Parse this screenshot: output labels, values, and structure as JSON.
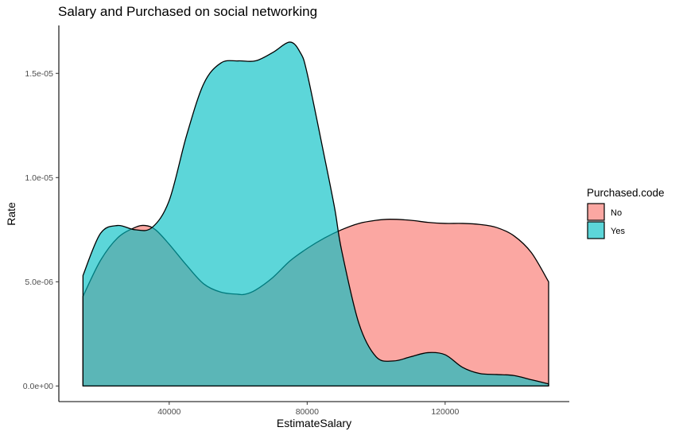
{
  "chart_data": {
    "type": "area",
    "title": "Salary and Purchased on social networking",
    "xlabel": "EstimateSalary",
    "ylabel": "Rate",
    "xlim": [
      8000,
      156000
    ],
    "ylim": [
      -7.5e-07,
      1.73e-05
    ],
    "x_ticks": [
      {
        "value": 40000,
        "label": "40000"
      },
      {
        "value": 80000,
        "label": "80000"
      },
      {
        "value": 120000,
        "label": "120000"
      }
    ],
    "y_ticks": [
      {
        "value": 0,
        "label": "0.0e+00"
      },
      {
        "value": 5e-06,
        "label": "5.0e-06"
      },
      {
        "value": 1e-05,
        "label": "1.0e-05"
      },
      {
        "value": 1.5e-05,
        "label": "1.5e-05"
      }
    ],
    "grid": false,
    "legend": {
      "title": "Purchased.code",
      "position": "right"
    },
    "series": [
      {
        "name": "No",
        "color": "#F8766D",
        "x": [
          15000,
          20000,
          25000,
          30000,
          33000,
          36000,
          40000,
          45000,
          50000,
          55000,
          60000,
          62000,
          65000,
          70000,
          75000,
          80000,
          85000,
          90000,
          95000,
          100000,
          104000,
          110000,
          115000,
          120000,
          125000,
          130000,
          135000,
          140000,
          145000,
          150000
        ],
        "y": [
          4.3e-06,
          6e-06,
          7.1e-06,
          7.6e-06,
          7.7e-06,
          7.5e-06,
          6.8e-06,
          5.8e-06,
          4.9e-06,
          4.5e-06,
          4.4e-06,
          4.4e-06,
          4.6e-06,
          5.2e-06,
          6e-06,
          6.6e-06,
          7.1e-06,
          7.5e-06,
          7.8e-06,
          7.95e-06,
          8e-06,
          7.95e-06,
          7.85e-06,
          7.8e-06,
          7.8e-06,
          7.75e-06,
          7.6e-06,
          7.2e-06,
          6.4e-06,
          5e-06
        ]
      },
      {
        "name": "Yes",
        "color": "#00BFC4",
        "x": [
          15000,
          20000,
          25000,
          30000,
          35000,
          40000,
          45000,
          50000,
          55000,
          60000,
          65000,
          70000,
          75000,
          78000,
          80000,
          85000,
          88000,
          90000,
          95000,
          100000,
          105000,
          110000,
          115000,
          120000,
          125000,
          130000,
          135000,
          140000,
          145000,
          150000
        ],
        "y": [
          5.3e-06,
          7.3e-06,
          7.7e-06,
          7.5e-06,
          7.6e-06,
          8.9e-06,
          1.2e-05,
          1.45e-05,
          1.55e-05,
          1.56e-05,
          1.56e-05,
          1.6e-05,
          1.65e-05,
          1.6e-05,
          1.5e-05,
          1.1e-05,
          8.5e-06,
          6.5e-06,
          3e-06,
          1.4e-06,
          1.2e-06,
          1.4e-06,
          1.6e-06,
          1.5e-06,
          9e-07,
          6e-07,
          5.5e-07,
          5e-07,
          3e-07,
          1e-07
        ]
      }
    ]
  }
}
